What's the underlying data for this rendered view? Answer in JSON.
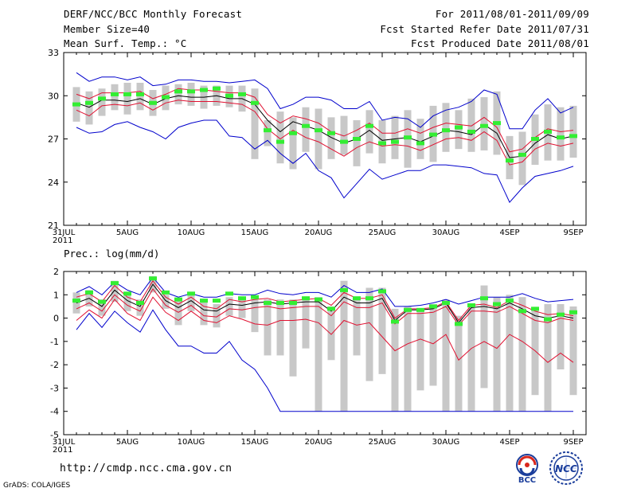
{
  "header": {
    "title": "DERF/NCC/BCC Monthly Forecast",
    "member_size": "Member Size=40",
    "variable": "Mean Surf. Temp.: °C",
    "forecast_period": "For 2011/08/01-2011/09/09",
    "start_date": "Fcst Started Refer Date 2011/07/31",
    "produced_date": "Fcst Produced Date 2011/08/01"
  },
  "footer": {
    "url": "http://cmdp.ncc.cma.gov.cn",
    "credit": "GrADS: COLA/IGES",
    "logo_bcc_text": "BCC",
    "logo_ncc_text": "NCC"
  },
  "colors": {
    "box": "#c8c8c8",
    "obs": "#33ee33",
    "mean": "#000000",
    "spread": "#e01030",
    "extreme": "#0000cc"
  },
  "chart_data": [
    {
      "type": "line",
      "title": "Mean Surf. Temp.: °C",
      "ylim": [
        21,
        33
      ],
      "yticks": [
        21,
        24,
        27,
        30,
        33
      ],
      "x_ticks": [
        {
          "day": 0,
          "label": "31JUL",
          "sub": "2011"
        },
        {
          "day": 5,
          "label": "5AUG"
        },
        {
          "day": 10,
          "label": "10AUG"
        },
        {
          "day": 15,
          "label": "15AUG"
        },
        {
          "day": 20,
          "label": "20AUG"
        },
        {
          "day": 25,
          "label": "25AUG"
        },
        {
          "day": 30,
          "label": "30AUG"
        },
        {
          "day": 35,
          "label": "4SEP"
        },
        {
          "day": 40,
          "label": "9SEP"
        }
      ],
      "x": [
        1,
        2,
        3,
        4,
        5,
        6,
        7,
        8,
        9,
        10,
        11,
        12,
        13,
        14,
        15,
        16,
        17,
        18,
        19,
        20,
        21,
        22,
        23,
        24,
        25,
        26,
        27,
        28,
        29,
        30,
        31,
        32,
        33,
        34,
        35,
        36,
        37,
        38,
        39,
        40
      ],
      "series": [
        {
          "name": "max",
          "values": [
            31.6,
            31.0,
            31.3,
            31.3,
            31.1,
            31.3,
            30.7,
            30.8,
            31.1,
            31.1,
            31.0,
            31.0,
            30.9,
            31.0,
            31.1,
            30.5,
            29.1,
            29.4,
            29.9,
            29.9,
            29.7,
            29.1,
            29.1,
            29.6,
            28.3,
            28.5,
            28.4,
            27.8,
            28.6,
            29.0,
            29.2,
            29.6,
            30.4,
            30.1,
            27.7,
            27.7,
            29.0,
            29.8,
            28.8,
            29.2
          ]
        },
        {
          "name": "upper",
          "values": [
            30.1,
            29.8,
            30.2,
            30.2,
            30.2,
            30.3,
            29.8,
            30.1,
            30.5,
            30.4,
            30.4,
            30.3,
            30.2,
            30.2,
            29.9,
            28.7,
            28.1,
            28.6,
            28.4,
            28.1,
            27.5,
            27.2,
            27.6,
            28.1,
            27.4,
            27.4,
            27.7,
            27.4,
            27.8,
            28.1,
            28.0,
            27.9,
            28.5,
            27.8,
            26.1,
            26.3,
            27.1,
            27.7,
            27.5,
            27.6
          ]
        },
        {
          "name": "mean",
          "values": [
            29.5,
            29.2,
            29.7,
            29.7,
            29.6,
            29.8,
            29.4,
            29.8,
            30.0,
            29.9,
            29.9,
            30.0,
            29.8,
            29.8,
            29.4,
            28.3,
            27.5,
            28.2,
            27.9,
            27.6,
            27.1,
            26.7,
            27.0,
            27.6,
            26.9,
            27.0,
            27.1,
            26.8,
            27.2,
            27.6,
            27.5,
            27.3,
            28.0,
            27.4,
            25.7,
            25.8,
            26.7,
            27.3,
            27.0,
            27.2
          ]
        },
        {
          "name": "lower",
          "values": [
            29.0,
            28.6,
            29.3,
            29.4,
            29.3,
            29.5,
            29.0,
            29.5,
            29.7,
            29.6,
            29.6,
            29.6,
            29.5,
            29.4,
            28.9,
            27.7,
            27.0,
            27.6,
            27.1,
            26.8,
            26.3,
            25.8,
            26.4,
            26.8,
            26.5,
            26.6,
            26.5,
            26.2,
            26.6,
            27.0,
            27.1,
            26.9,
            27.5,
            26.9,
            25.2,
            25.4,
            26.3,
            26.7,
            26.5,
            26.7
          ]
        },
        {
          "name": "min",
          "values": [
            27.8,
            27.4,
            27.5,
            28.0,
            28.2,
            27.8,
            27.5,
            27.0,
            27.8,
            28.1,
            28.3,
            28.3,
            27.2,
            27.1,
            26.3,
            26.9,
            26.0,
            25.3,
            26.0,
            24.8,
            24.3,
            22.9,
            23.9,
            24.9,
            24.2,
            24.5,
            24.8,
            24.8,
            25.2,
            25.2,
            25.1,
            25.0,
            24.6,
            24.5,
            22.6,
            23.6,
            24.4,
            24.6,
            24.8,
            25.1
          ]
        }
      ],
      "boxes": [
        {
          "lo": 28.2,
          "hi": 30.6
        },
        {
          "lo": 28.0,
          "hi": 30.3
        },
        {
          "lo": 28.6,
          "hi": 30.5
        },
        {
          "lo": 29.0,
          "hi": 30.8
        },
        {
          "lo": 28.7,
          "hi": 30.9
        },
        {
          "lo": 29.0,
          "hi": 30.9
        },
        {
          "lo": 28.6,
          "hi": 30.4
        },
        {
          "lo": 29.0,
          "hi": 30.7
        },
        {
          "lo": 29.4,
          "hi": 30.8
        },
        {
          "lo": 29.3,
          "hi": 30.9
        },
        {
          "lo": 29.1,
          "hi": 30.7
        },
        {
          "lo": 29.3,
          "hi": 30.7
        },
        {
          "lo": 29.2,
          "hi": 30.7
        },
        {
          "lo": 28.9,
          "hi": 30.7
        },
        {
          "lo": 25.6,
          "hi": 30.5
        },
        {
          "lo": 26.5,
          "hi": 28.3
        },
        {
          "lo": 25.3,
          "hi": 28.9
        },
        {
          "lo": 24.9,
          "hi": 28.5
        },
        {
          "lo": 26.1,
          "hi": 29.2
        },
        {
          "lo": 24.9,
          "hi": 29.1
        },
        {
          "lo": 25.6,
          "hi": 28.5
        },
        {
          "lo": 25.9,
          "hi": 28.6
        },
        {
          "lo": 25.1,
          "hi": 28.3
        },
        {
          "lo": 26.0,
          "hi": 29.0
        },
        {
          "lo": 25.3,
          "hi": 28.3
        },
        {
          "lo": 25.6,
          "hi": 28.6
        },
        {
          "lo": 25.0,
          "hi": 29.0
        },
        {
          "lo": 25.6,
          "hi": 28.4
        },
        {
          "lo": 25.4,
          "hi": 29.3
        },
        {
          "lo": 26.1,
          "hi": 29.5
        },
        {
          "lo": 26.3,
          "hi": 29.0
        },
        {
          "lo": 26.1,
          "hi": 29.8
        },
        {
          "lo": 26.2,
          "hi": 29.9
        },
        {
          "lo": 25.9,
          "hi": 30.3
        },
        {
          "lo": 24.2,
          "hi": 27.2
        },
        {
          "lo": 23.8,
          "hi": 27.5
        },
        {
          "lo": 25.2,
          "hi": 28.7
        },
        {
          "lo": 25.5,
          "hi": 29.4
        },
        {
          "lo": 25.5,
          "hi": 29.2
        },
        {
          "lo": 25.7,
          "hi": 29.3
        }
      ],
      "obs": [
        29.4,
        29.5,
        29.8,
        30.1,
        30.1,
        30.1,
        29.5,
        29.9,
        30.3,
        30.3,
        30.4,
        30.5,
        30.0,
        30.1,
        29.5,
        27.6,
        26.8,
        27.4,
        27.9,
        27.6,
        27.4,
        26.8,
        27.0,
        27.9,
        26.7,
        26.8,
        27.1,
        26.7,
        27.3,
        27.6,
        27.8,
        27.5,
        27.9,
        28.1,
        25.5,
        25.9,
        27.0,
        27.5,
        27.1,
        27.2
      ]
    },
    {
      "type": "line",
      "title": "Prec.: log(mm/d)",
      "ylim": [
        -5,
        2
      ],
      "yticks": [
        -5,
        -4,
        -3,
        -2,
        -1,
        0,
        1,
        2
      ],
      "x_ticks": [
        {
          "day": 0,
          "label": "31JUL",
          "sub": "2011"
        },
        {
          "day": 5,
          "label": "5AUG"
        },
        {
          "day": 10,
          "label": "10AUG"
        },
        {
          "day": 15,
          "label": "15AUG"
        },
        {
          "day": 20,
          "label": "20AUG"
        },
        {
          "day": 25,
          "label": "25AUG"
        },
        {
          "day": 30,
          "label": "30AUG"
        },
        {
          "day": 35,
          "label": "4SEP"
        },
        {
          "day": 40,
          "label": "9SEP"
        }
      ],
      "x": [
        1,
        2,
        3,
        4,
        5,
        6,
        7,
        8,
        9,
        10,
        11,
        12,
        13,
        14,
        15,
        16,
        17,
        18,
        19,
        20,
        21,
        22,
        23,
        24,
        25,
        26,
        27,
        28,
        29,
        30,
        31,
        32,
        33,
        34,
        35,
        36,
        37,
        38,
        39,
        40
      ],
      "series": [
        {
          "name": "max",
          "values": [
            1.1,
            1.35,
            1.0,
            1.55,
            1.2,
            1.0,
            1.75,
            1.1,
            0.9,
            1.05,
            0.9,
            0.9,
            1.05,
            1.0,
            1.0,
            1.2,
            1.05,
            1.0,
            1.1,
            1.1,
            0.9,
            1.4,
            1.1,
            1.1,
            1.25,
            0.5,
            0.5,
            0.55,
            0.65,
            0.8,
            0.6,
            0.75,
            0.9,
            0.9,
            0.9,
            1.05,
            0.85,
            0.7,
            0.75,
            0.8
          ]
        },
        {
          "name": "upper",
          "values": [
            0.9,
            1.05,
            0.7,
            1.4,
            0.9,
            0.7,
            1.6,
            0.9,
            0.6,
            0.9,
            0.5,
            0.4,
            0.8,
            0.7,
            0.8,
            0.85,
            0.7,
            0.75,
            0.8,
            0.85,
            0.55,
            1.1,
            0.85,
            0.85,
            1.0,
            0.0,
            0.4,
            0.4,
            0.45,
            0.7,
            -0.1,
            0.55,
            0.6,
            0.45,
            0.75,
            0.55,
            0.3,
            0.15,
            0.2,
            0.1
          ]
        },
        {
          "name": "mean",
          "values": [
            0.65,
            0.85,
            0.5,
            1.2,
            0.75,
            0.5,
            1.45,
            0.75,
            0.45,
            0.75,
            0.35,
            0.3,
            0.6,
            0.55,
            0.65,
            0.7,
            0.6,
            0.65,
            0.7,
            0.7,
            0.3,
            0.9,
            0.65,
            0.65,
            0.85,
            -0.1,
            0.35,
            0.35,
            0.4,
            0.65,
            -0.2,
            0.45,
            0.5,
            0.4,
            0.65,
            0.4,
            0.1,
            0.0,
            0.1,
            0.0
          ]
        },
        {
          "name": "lower",
          "values": [
            0.4,
            0.65,
            0.3,
            1.0,
            0.55,
            0.3,
            1.25,
            0.55,
            0.25,
            0.55,
            0.1,
            0.05,
            0.4,
            0.35,
            0.45,
            0.5,
            0.4,
            0.45,
            0.5,
            0.5,
            0.1,
            0.7,
            0.45,
            0.45,
            0.65,
            -0.25,
            0.2,
            0.2,
            0.25,
            0.5,
            -0.3,
            0.3,
            0.3,
            0.25,
            0.5,
            0.2,
            -0.1,
            -0.2,
            0.0,
            -0.1
          ]
        },
        {
          "name": "spread_low",
          "values": [
            -0.1,
            0.35,
            0.0,
            0.8,
            0.2,
            -0.1,
            0.9,
            0.25,
            -0.1,
            0.3,
            -0.1,
            -0.2,
            0.1,
            -0.05,
            -0.25,
            -0.3,
            -0.1,
            -0.1,
            -0.05,
            -0.2,
            -0.7,
            -0.1,
            -0.3,
            -0.2,
            -0.8,
            -1.4,
            -1.1,
            -0.9,
            -1.1,
            -0.7,
            -1.8,
            -1.3,
            -1.0,
            -1.3,
            -0.7,
            -1.0,
            -1.4,
            -1.9,
            -1.5,
            -1.9
          ]
        },
        {
          "name": "min",
          "values": [
            -0.5,
            0.2,
            -0.4,
            0.3,
            -0.2,
            -0.6,
            0.35,
            -0.5,
            -1.2,
            -1.2,
            -1.5,
            -1.5,
            -1.0,
            -1.8,
            -2.2,
            -3.0,
            -4.0,
            -4.0,
            -4.0,
            -4.0,
            -4.0,
            -4.0,
            -4.0,
            -4.0,
            -4.0,
            -4.0,
            -4.0,
            -4.0,
            -4.0,
            -4.0,
            -4.0,
            -4.0,
            -4.0,
            -4.0,
            -4.0,
            -4.0,
            -4.0,
            -4.0,
            -4.0,
            -4.0
          ]
        }
      ],
      "boxes": [
        {
          "lo": 0.2,
          "hi": 1.1
        },
        {
          "lo": 0.5,
          "hi": 1.2
        },
        {
          "lo": 0.1,
          "hi": 0.8
        },
        {
          "lo": 0.7,
          "hi": 1.6
        },
        {
          "lo": 0.3,
          "hi": 1.1
        },
        {
          "lo": 0.1,
          "hi": 0.8
        },
        {
          "lo": 1.1,
          "hi": 1.8
        },
        {
          "lo": 0.4,
          "hi": 1.0
        },
        {
          "lo": -0.3,
          "hi": 0.8
        },
        {
          "lo": 0.3,
          "hi": 1.0
        },
        {
          "lo": -0.3,
          "hi": 0.7
        },
        {
          "lo": -0.4,
          "hi": 0.6
        },
        {
          "lo": 0.1,
          "hi": 0.9
        },
        {
          "lo": 0.0,
          "hi": 0.8
        },
        {
          "lo": -0.6,
          "hi": 0.8
        },
        {
          "lo": -1.6,
          "hi": 0.8
        },
        {
          "lo": -1.6,
          "hi": 0.8
        },
        {
          "lo": -2.5,
          "hi": 0.8
        },
        {
          "lo": -1.3,
          "hi": 0.9
        },
        {
          "lo": -4.0,
          "hi": 0.9
        },
        {
          "lo": -1.8,
          "hi": 0.5
        },
        {
          "lo": -4.0,
          "hi": 1.6
        },
        {
          "lo": -1.6,
          "hi": 0.9
        },
        {
          "lo": -2.7,
          "hi": 1.3
        },
        {
          "lo": -2.4,
          "hi": 1.3
        },
        {
          "lo": -4.0,
          "hi": 0.4
        },
        {
          "lo": -4.0,
          "hi": 0.5
        },
        {
          "lo": -3.1,
          "hi": 0.3
        },
        {
          "lo": -2.9,
          "hi": 0.6
        },
        {
          "lo": -4.0,
          "hi": 0.8
        },
        {
          "lo": -4.0,
          "hi": 0.1
        },
        {
          "lo": -4.0,
          "hi": 0.6
        },
        {
          "lo": -3.0,
          "hi": 1.4
        },
        {
          "lo": -4.0,
          "hi": 0.9
        },
        {
          "lo": -4.0,
          "hi": 1.0
        },
        {
          "lo": -4.0,
          "hi": 0.9
        },
        {
          "lo": -3.3,
          "hi": 0.4
        },
        {
          "lo": -4.0,
          "hi": 0.6
        },
        {
          "lo": -2.2,
          "hi": 0.6
        },
        {
          "lo": -3.3,
          "hi": 0.5
        }
      ],
      "obs": [
        0.75,
        1.1,
        0.7,
        1.5,
        1.05,
        0.65,
        1.7,
        1.1,
        0.8,
        1.05,
        0.75,
        0.75,
        1.05,
        0.85,
        0.9,
        0.65,
        0.65,
        0.65,
        0.85,
        0.8,
        0.4,
        1.2,
        0.85,
        0.85,
        1.15,
        -0.15,
        0.35,
        0.35,
        0.5,
        0.65,
        -0.25,
        0.55,
        0.85,
        0.6,
        0.75,
        0.3,
        0.4,
        -0.05,
        0.15,
        0.25
      ]
    }
  ]
}
